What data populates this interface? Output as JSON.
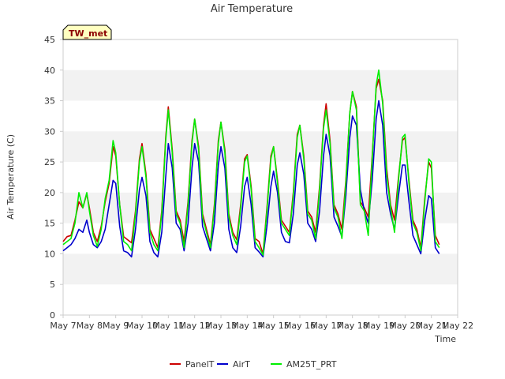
{
  "chart_data": {
    "type": "line",
    "title": "Air Temperature",
    "xlabel": "Time",
    "ylabel": "Air Temperature (C)",
    "badge": "TW_met",
    "ylim": [
      0,
      45
    ],
    "yticks": [
      0,
      5,
      10,
      15,
      20,
      25,
      30,
      35,
      40,
      45
    ],
    "xlim": [
      0,
      15
    ],
    "xticks": [
      "May 7",
      "May 8",
      "May 9",
      "May 10",
      "May 11",
      "May 12",
      "May 13",
      "May 14",
      "May 15",
      "May 16",
      "May 17",
      "May 18",
      "May 19",
      "May 20",
      "May 21",
      "May 22"
    ],
    "grid": "horizontal bands",
    "legend_position": "bottom-center",
    "colors": {
      "band": "#f2f2f2",
      "badge_fill": "#ffffc0"
    },
    "series": [
      {
        "name": "PanelT",
        "color": "#cc0000",
        "x": [
          0.0,
          0.15,
          0.3,
          0.45,
          0.6,
          0.75,
          0.9,
          1.0,
          1.15,
          1.3,
          1.45,
          1.6,
          1.75,
          1.9,
          2.0,
          2.15,
          2.3,
          2.45,
          2.6,
          2.75,
          2.9,
          3.0,
          3.15,
          3.3,
          3.45,
          3.6,
          3.75,
          3.9,
          4.0,
          4.15,
          4.3,
          4.45,
          4.6,
          4.75,
          4.9,
          5.0,
          5.15,
          5.3,
          5.45,
          5.6,
          5.75,
          5.9,
          6.0,
          6.15,
          6.3,
          6.45,
          6.6,
          6.75,
          6.9,
          7.0,
          7.15,
          7.3,
          7.45,
          7.6,
          7.75,
          7.9,
          8.0,
          8.15,
          8.3,
          8.45,
          8.6,
          8.75,
          8.9,
          9.0,
          9.15,
          9.3,
          9.45,
          9.6,
          9.75,
          9.9,
          10.0,
          10.15,
          10.3,
          10.45,
          10.6,
          10.75,
          10.9,
          11.0,
          11.15,
          11.3,
          11.45,
          11.6,
          11.75,
          11.9,
          12.0,
          12.15,
          12.3,
          12.45,
          12.6,
          12.75,
          12.9,
          13.0,
          13.15,
          13.3,
          13.45,
          13.6,
          13.75,
          13.9,
          14.0,
          14.15,
          14.3
        ],
        "values": [
          12.0,
          12.8,
          13.0,
          15.5,
          18.5,
          17.5,
          19.8,
          17.5,
          13.5,
          12.0,
          14.5,
          18.5,
          21.5,
          27.5,
          26.0,
          18.0,
          12.8,
          12.3,
          11.8,
          17.0,
          25.5,
          28.0,
          23.0,
          14.0,
          12.5,
          11.0,
          17.0,
          29.0,
          34.0,
          27.0,
          17.0,
          15.5,
          12.0,
          18.5,
          28.5,
          32.0,
          27.5,
          16.5,
          14.0,
          11.5,
          18.0,
          28.5,
          31.5,
          27.0,
          16.5,
          13.5,
          12.3,
          18.0,
          25.5,
          26.2,
          21.0,
          12.5,
          12.0,
          10.0,
          17.5,
          26.0,
          27.5,
          22.0,
          15.5,
          14.5,
          13.5,
          20.0,
          29.5,
          31.0,
          26.0,
          17.0,
          16.0,
          13.5,
          21.0,
          31.0,
          34.5,
          28.5,
          18.0,
          16.5,
          14.0,
          22.0,
          33.0,
          36.5,
          34.0,
          18.5,
          17.5,
          16.0,
          26.0,
          37.0,
          38.5,
          35.0,
          24.0,
          18.0,
          15.5,
          22.5,
          28.5,
          29.0,
          22.0,
          15.5,
          14.0,
          11.0,
          19.0,
          25.0,
          24.0,
          13.0,
          11.5
        ]
      },
      {
        "name": "AirT",
        "color": "#0000cc",
        "x": [
          0.0,
          0.15,
          0.3,
          0.45,
          0.6,
          0.75,
          0.9,
          1.0,
          1.15,
          1.3,
          1.45,
          1.6,
          1.75,
          1.9,
          2.0,
          2.15,
          2.3,
          2.45,
          2.6,
          2.75,
          2.9,
          3.0,
          3.15,
          3.3,
          3.45,
          3.6,
          3.75,
          3.9,
          4.0,
          4.15,
          4.3,
          4.45,
          4.6,
          4.75,
          4.9,
          5.0,
          5.15,
          5.3,
          5.45,
          5.6,
          5.75,
          5.9,
          6.0,
          6.15,
          6.3,
          6.45,
          6.6,
          6.75,
          6.9,
          7.0,
          7.15,
          7.3,
          7.45,
          7.6,
          7.75,
          7.9,
          8.0,
          8.15,
          8.3,
          8.45,
          8.6,
          8.75,
          8.9,
          9.0,
          9.15,
          9.3,
          9.45,
          9.6,
          9.75,
          9.9,
          10.0,
          10.15,
          10.3,
          10.45,
          10.6,
          10.75,
          10.9,
          11.0,
          11.15,
          11.3,
          11.45,
          11.6,
          11.75,
          11.9,
          12.0,
          12.15,
          12.3,
          12.45,
          12.6,
          12.75,
          12.9,
          13.0,
          13.15,
          13.3,
          13.45,
          13.6,
          13.75,
          13.9,
          14.0,
          14.15,
          14.3
        ],
        "values": [
          10.5,
          11.0,
          11.5,
          12.5,
          14.0,
          13.5,
          15.5,
          13.5,
          11.5,
          11.0,
          12.0,
          14.0,
          18.0,
          22.0,
          21.5,
          14.5,
          10.5,
          10.2,
          9.5,
          14.0,
          20.5,
          22.5,
          19.5,
          12.0,
          10.2,
          9.5,
          13.5,
          22.5,
          28.0,
          24.0,
          15.0,
          14.0,
          10.5,
          15.0,
          24.0,
          28.0,
          25.0,
          14.5,
          12.5,
          10.5,
          15.0,
          24.5,
          27.5,
          24.0,
          14.0,
          11.0,
          10.2,
          14.5,
          21.0,
          22.5,
          18.0,
          11.0,
          10.3,
          9.5,
          14.5,
          21.0,
          23.5,
          20.0,
          13.5,
          12.0,
          11.8,
          16.5,
          24.5,
          26.5,
          23.0,
          15.0,
          14.0,
          12.0,
          17.0,
          26.0,
          29.5,
          26.0,
          16.0,
          14.5,
          12.8,
          19.5,
          29.0,
          32.5,
          31.0,
          20.5,
          17.0,
          15.0,
          22.0,
          32.0,
          35.0,
          31.0,
          20.0,
          16.5,
          14.0,
          19.5,
          24.5,
          24.5,
          18.5,
          13.0,
          11.5,
          10.0,
          15.5,
          19.5,
          19.0,
          11.0,
          10.0
        ]
      },
      {
        "name": "AM25T_PRT",
        "color": "#00ee00",
        "x": [
          0.0,
          0.15,
          0.3,
          0.45,
          0.6,
          0.75,
          0.9,
          1.0,
          1.15,
          1.3,
          1.45,
          1.6,
          1.75,
          1.9,
          2.0,
          2.15,
          2.3,
          2.45,
          2.6,
          2.75,
          2.9,
          3.0,
          3.15,
          3.3,
          3.45,
          3.6,
          3.75,
          3.9,
          4.0,
          4.15,
          4.3,
          4.45,
          4.6,
          4.75,
          4.9,
          5.0,
          5.15,
          5.3,
          5.45,
          5.6,
          5.75,
          5.9,
          6.0,
          6.15,
          6.3,
          6.45,
          6.6,
          6.75,
          6.9,
          7.0,
          7.15,
          7.3,
          7.45,
          7.6,
          7.75,
          7.9,
          8.0,
          8.15,
          8.3,
          8.45,
          8.6,
          8.75,
          8.9,
          9.0,
          9.15,
          9.3,
          9.45,
          9.6,
          9.75,
          9.9,
          10.0,
          10.15,
          10.3,
          10.45,
          10.6,
          10.75,
          10.9,
          11.0,
          11.15,
          11.3,
          11.45,
          11.6,
          11.75,
          11.9,
          12.0,
          12.15,
          12.3,
          12.45,
          12.6,
          12.75,
          12.9,
          13.0,
          13.15,
          13.3,
          13.45,
          13.6,
          13.75,
          13.9,
          14.0,
          14.15,
          14.3
        ],
        "values": [
          11.5,
          12.0,
          12.5,
          15.0,
          20.0,
          17.5,
          20.0,
          17.0,
          13.0,
          11.2,
          14.0,
          19.0,
          22.0,
          28.5,
          26.5,
          18.0,
          12.0,
          11.5,
          10.5,
          16.5,
          25.0,
          27.5,
          22.5,
          13.5,
          11.5,
          10.5,
          16.5,
          28.5,
          33.5,
          26.5,
          16.5,
          15.0,
          11.0,
          18.0,
          28.0,
          32.0,
          27.0,
          16.0,
          13.5,
          11.0,
          17.5,
          28.0,
          31.5,
          26.5,
          16.0,
          13.0,
          11.5,
          17.5,
          25.0,
          26.0,
          20.5,
          12.0,
          11.0,
          9.8,
          17.0,
          25.5,
          27.5,
          21.5,
          15.0,
          14.0,
          13.0,
          19.5,
          29.0,
          31.0,
          25.5,
          16.5,
          15.5,
          12.5,
          20.5,
          30.5,
          33.5,
          28.0,
          17.5,
          16.0,
          12.5,
          21.5,
          33.0,
          36.5,
          33.5,
          18.0,
          17.0,
          13.0,
          25.5,
          37.5,
          40.0,
          34.5,
          23.0,
          17.5,
          13.5,
          22.0,
          29.0,
          29.5,
          21.5,
          15.0,
          13.5,
          10.5,
          18.5,
          25.5,
          25.0,
          12.0,
          11.0
        ]
      }
    ]
  }
}
